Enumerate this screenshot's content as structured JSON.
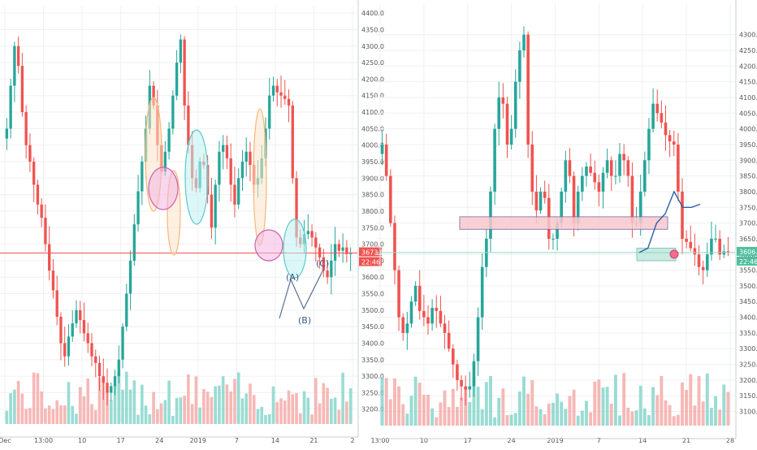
{
  "colors": {
    "up": "#26a69a",
    "down": "#ef5350",
    "vol_up": "#7fd3c8",
    "vol_down": "#f4a6a4",
    "grid": "#eef0f3",
    "price_line": "#ef5350",
    "wave_path": "#5a6f94"
  },
  "chart_data": [
    {
      "type": "candlestick",
      "panel": "left",
      "title": "",
      "xlabel": "",
      "ylabel": "",
      "ylim": [
        3160,
        4420
      ],
      "grid": true,
      "x_ticks": [
        "Dec",
        "13:00",
        "10",
        "17",
        "24",
        "2019",
        "7",
        "14",
        "21",
        "2"
      ],
      "y_ticks": [
        "4400.0",
        "4350.0",
        "4300.0",
        "4250.0",
        "4200.0",
        "4150.0",
        "4100.0",
        "4050.0",
        "4000.0",
        "3950.0",
        "3900.0",
        "3850.0",
        "3800.0",
        "3750.0",
        "3700.0",
        "3650.0",
        "3600.0",
        "3550.0",
        "3500.0",
        "3450.0",
        "3400.0",
        "3350.0",
        "3300.0",
        "3250.0",
        "3200.0"
      ],
      "last_price": "3673.0",
      "countdown": "22:46",
      "close_series": [
        4050,
        4180,
        4300,
        4240,
        4100,
        4000,
        3950,
        3880,
        3820,
        3780,
        3700,
        3620,
        3560,
        3480,
        3400,
        3360,
        3420,
        3460,
        3500,
        3470,
        3430,
        3400,
        3360,
        3340,
        3300,
        3280,
        3250,
        3270,
        3300,
        3350,
        3450,
        3550,
        3650,
        3760,
        3860,
        3950,
        4050,
        4180,
        4120,
        4000,
        3920,
        3980,
        4050,
        4150,
        4250,
        4320,
        4120,
        4000,
        3900,
        3870,
        3950,
        3940,
        3850,
        3750,
        3880,
        3980,
        4000,
        3960,
        3880,
        3820,
        3900,
        3950,
        3980,
        3940,
        3880,
        3900,
        3960,
        4050,
        4150,
        4180,
        4160,
        4150,
        4140,
        4120,
        3900,
        3720,
        3700,
        3730,
        3740,
        3720,
        3690,
        3660,
        3620,
        3600,
        3650,
        3700,
        3680,
        3690,
        3670,
        3673
      ],
      "annotations": [
        "(A)",
        "(B)",
        "(C)"
      ],
      "highlights": [
        {
          "shape": "ellipse",
          "color": "orange"
        },
        {
          "shape": "ellipse",
          "color": "orange"
        },
        {
          "shape": "circle",
          "color": "magenta"
        },
        {
          "shape": "ellipse",
          "color": "cyan"
        },
        {
          "shape": "ellipse",
          "color": "orange"
        },
        {
          "shape": "circle",
          "color": "magenta"
        },
        {
          "shape": "ellipse",
          "color": "cyan"
        }
      ]
    },
    {
      "type": "candlestick",
      "panel": "right",
      "title": "",
      "xlabel": "",
      "ylabel": "",
      "ylim": [
        3060,
        4400
      ],
      "grid": true,
      "x_ticks": [
        "13:00",
        "10",
        "17",
        "24",
        "2019",
        "7",
        "14",
        "21",
        "28"
      ],
      "y_ticks": [
        "4300.0",
        "4250.0",
        "4200.0",
        "4150.0",
        "4100.0",
        "4050.0",
        "4000.0",
        "3950.0",
        "3900.0",
        "3850.0",
        "3800.0",
        "3750.0",
        "3700.0",
        "3650.0",
        "3600.0",
        "3550.0",
        "3500.0",
        "3450.0",
        "3400.0",
        "3350.0",
        "3300.0",
        "3250.0",
        "3200.0",
        "3150.0",
        "3100.0"
      ],
      "last_price": "3606.0",
      "countdown": "22:46",
      "close_series": [
        3950,
        3850,
        3700,
        3550,
        3400,
        3350,
        3380,
        3450,
        3500,
        3420,
        3400,
        3380,
        3430,
        3420,
        3380,
        3350,
        3300,
        3250,
        3200,
        3180,
        3170,
        3180,
        3260,
        3400,
        3560,
        3650,
        3800,
        4000,
        4100,
        4080,
        3950,
        4000,
        4150,
        4250,
        4300,
        3950,
        3800,
        3740,
        3800,
        3780,
        3650,
        3650,
        3700,
        3800,
        3900,
        3850,
        3700,
        3800,
        3850,
        3880,
        3860,
        3830,
        3800,
        3860,
        3900,
        3850,
        3850,
        3920,
        3900,
        3850,
        3700,
        3700,
        3800,
        3900,
        4000,
        4080,
        4050,
        4020,
        3980,
        3960,
        3950,
        3800,
        3650,
        3640,
        3620,
        3600,
        3560,
        3550,
        3600,
        3650,
        3650,
        3600,
        3610,
        3606
      ],
      "annotations": [],
      "zones": [
        {
          "name": "resistance-zone",
          "from": 3680,
          "to": 3720,
          "color": "#f8c8cc"
        },
        {
          "name": "support-zone",
          "from": 3580,
          "to": 3620,
          "color": "#bfe8de"
        }
      ],
      "projection": [
        3606,
        3650,
        3700,
        3760,
        3800,
        3780,
        3750,
        3790
      ]
    }
  ]
}
